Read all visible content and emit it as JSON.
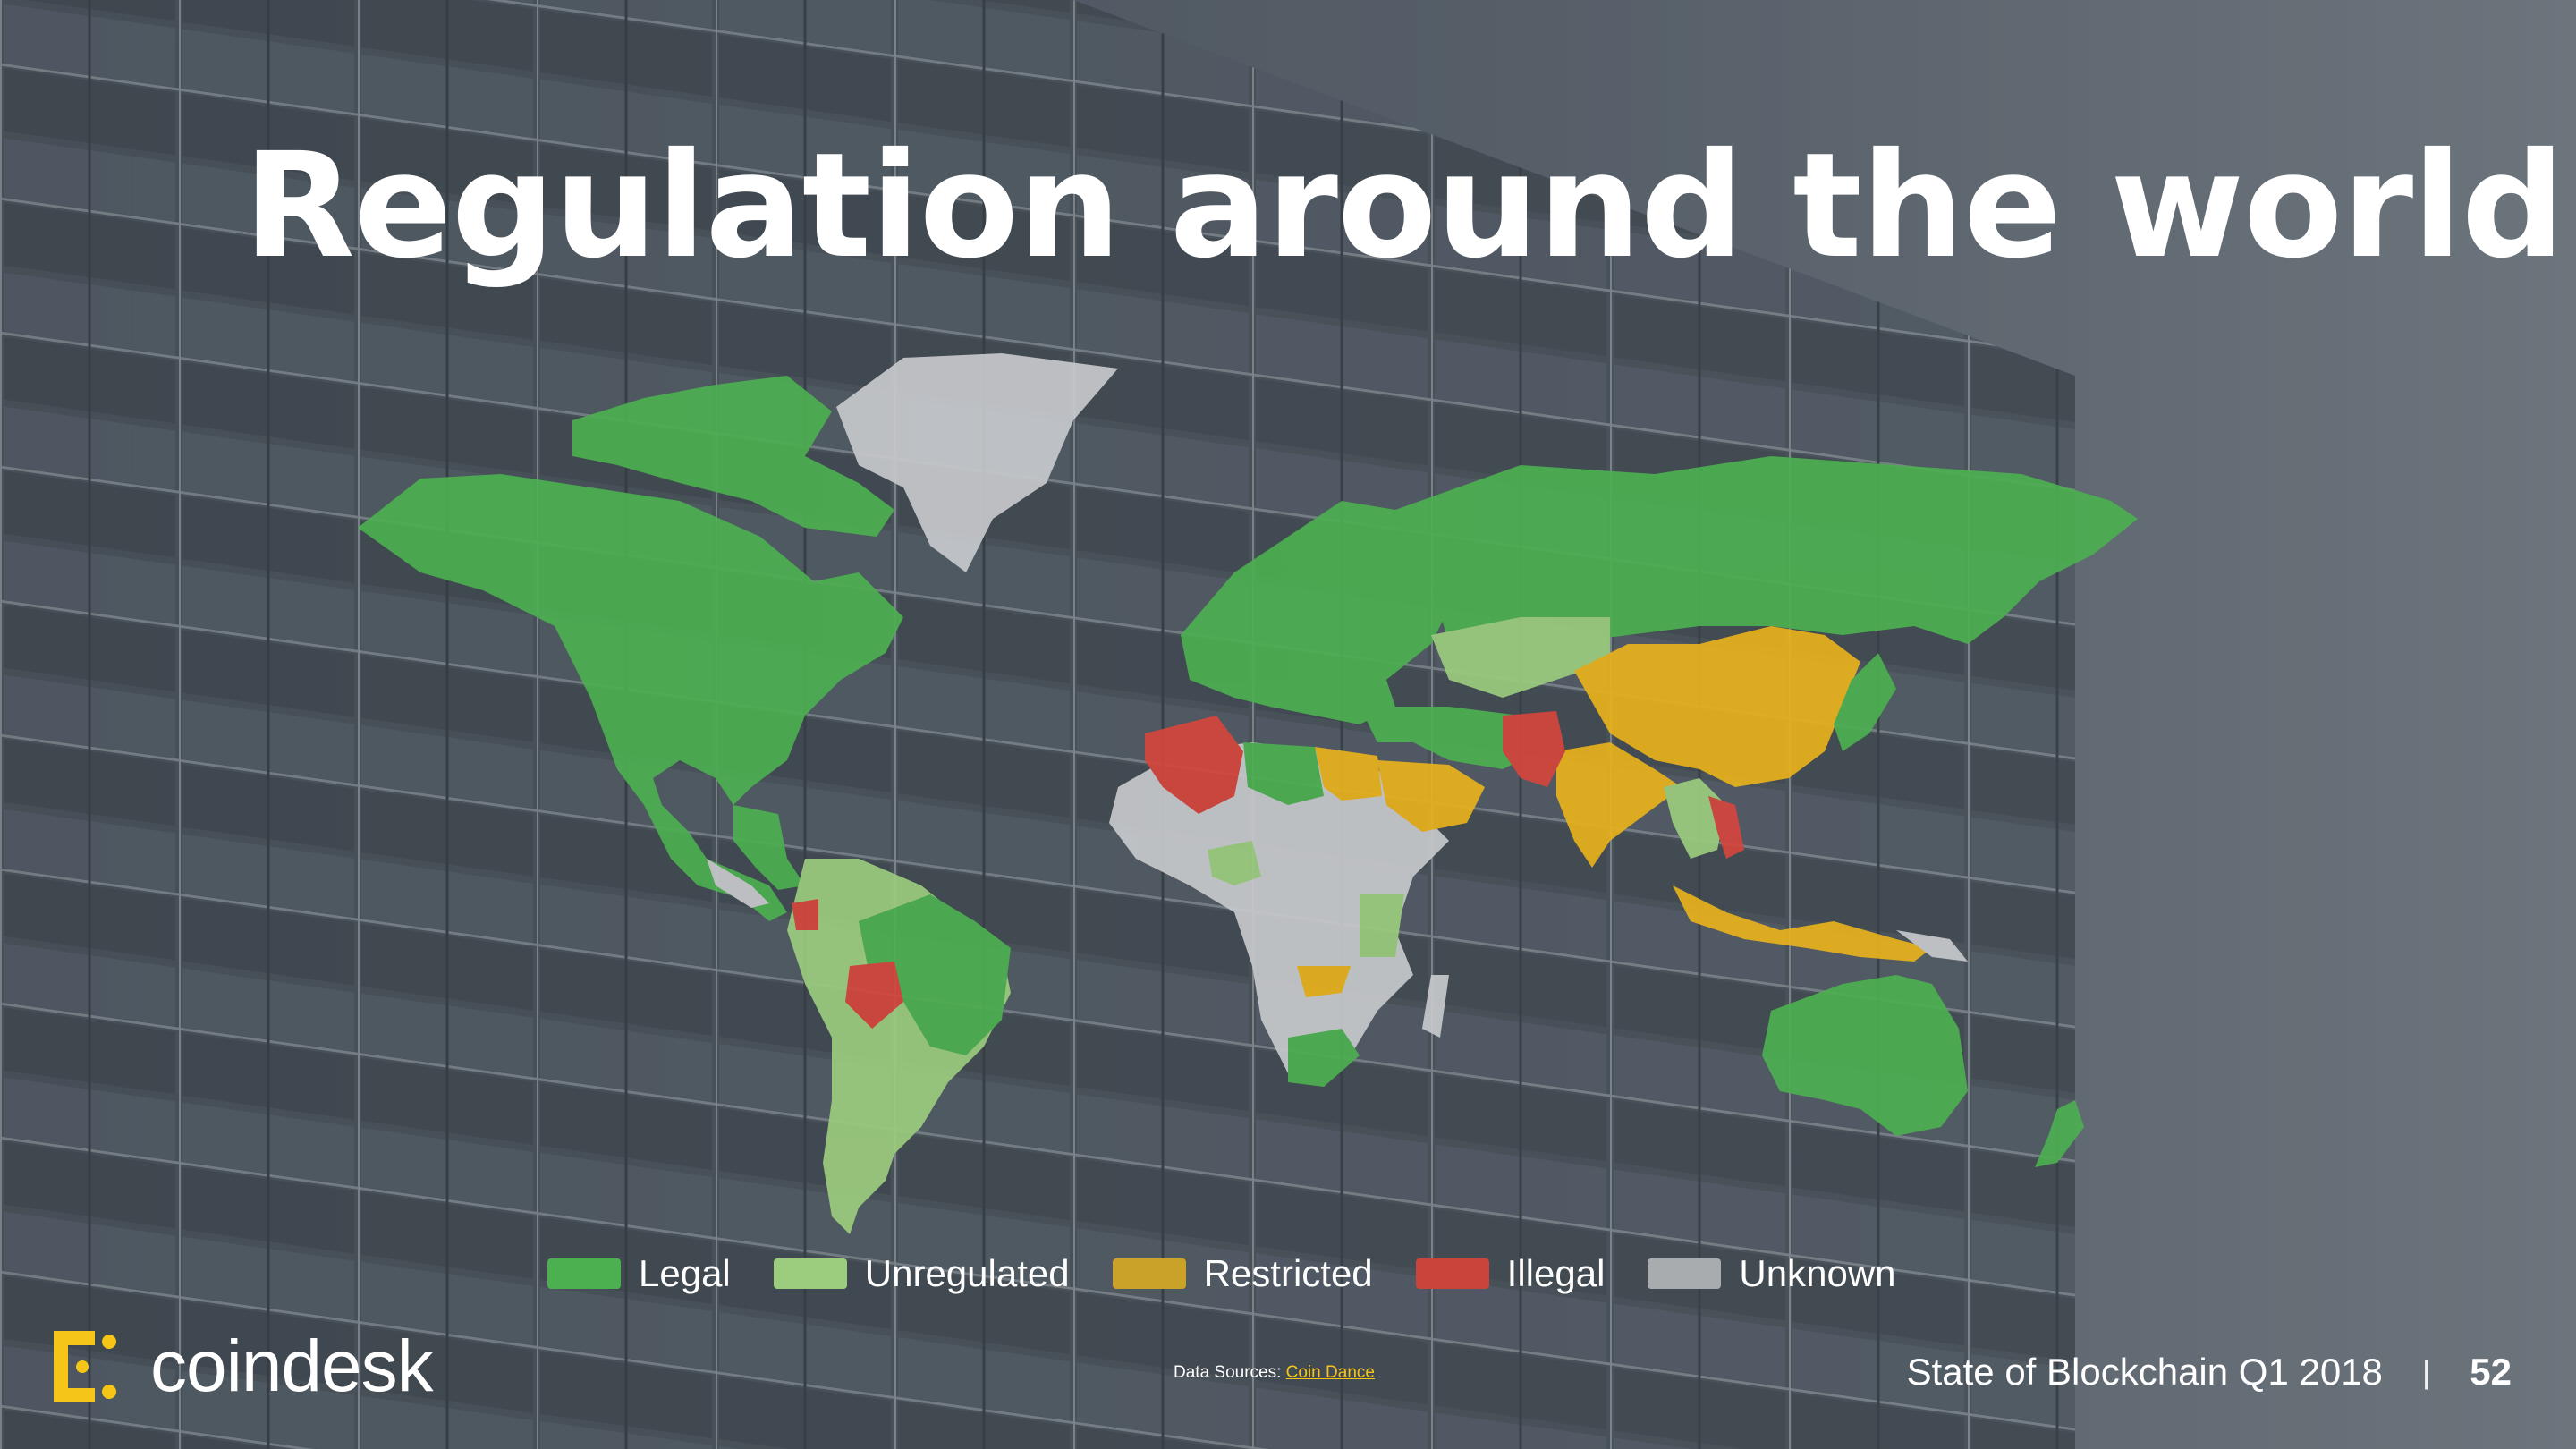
{
  "slide": {
    "title": "Regulation around the world",
    "title_dot": ".",
    "accent_color": "#f5c518",
    "background_image": "glass building facade"
  },
  "map": {
    "type": "choropleth world map",
    "colors": {
      "legal": "#4caf50",
      "unregulated": "#9ccc7e",
      "restricted": "#e8b21c",
      "illegal": "#d4463d",
      "unknown": "#c7c9cc"
    },
    "regions": [
      {
        "region": "North America",
        "status": "Legal"
      },
      {
        "region": "Greenland",
        "status": "Unknown"
      },
      {
        "region": "South America (most)",
        "status": "Unregulated"
      },
      {
        "region": "Brazil",
        "status": "Legal"
      },
      {
        "region": "Ecuador",
        "status": "Illegal"
      },
      {
        "region": "Bolivia",
        "status": "Illegal"
      },
      {
        "region": "Europe",
        "status": "Legal"
      },
      {
        "region": "Russia",
        "status": "Legal"
      },
      {
        "region": "Kazakhstan",
        "status": "Unregulated"
      },
      {
        "region": "China",
        "status": "Restricted"
      },
      {
        "region": "India",
        "status": "Restricted"
      },
      {
        "region": "Pakistan",
        "status": "Illegal"
      },
      {
        "region": "Algeria",
        "status": "Illegal"
      },
      {
        "region": "Saudi Arabia",
        "status": "Restricted"
      },
      {
        "region": "Egypt",
        "status": "Restricted"
      },
      {
        "region": "Africa (most)",
        "status": "Unknown"
      },
      {
        "region": "Indonesia",
        "status": "Restricted"
      },
      {
        "region": "Vietnam",
        "status": "Illegal"
      },
      {
        "region": "Australia",
        "status": "Legal"
      },
      {
        "region": "New Zealand",
        "status": "Legal"
      },
      {
        "region": "Japan",
        "status": "Legal"
      },
      {
        "region": "South Africa",
        "status": "Legal"
      }
    ]
  },
  "legend": [
    {
      "label": "Legal",
      "color": "#4caf50"
    },
    {
      "label": "Unregulated",
      "color": "#9ccc7e"
    },
    {
      "label": "Restricted",
      "color": "#c9a227"
    },
    {
      "label": "Illegal",
      "color": "#c9443b"
    },
    {
      "label": "Unknown",
      "color": "#a9acaf"
    }
  ],
  "logo": {
    "text": "coindesk",
    "color": "#f5c518"
  },
  "sources": {
    "prefix": "Data Sources: ",
    "link": "Coin Dance"
  },
  "footer": {
    "report": "State of Blockchain Q1 2018",
    "separator": "|",
    "page": "52"
  }
}
